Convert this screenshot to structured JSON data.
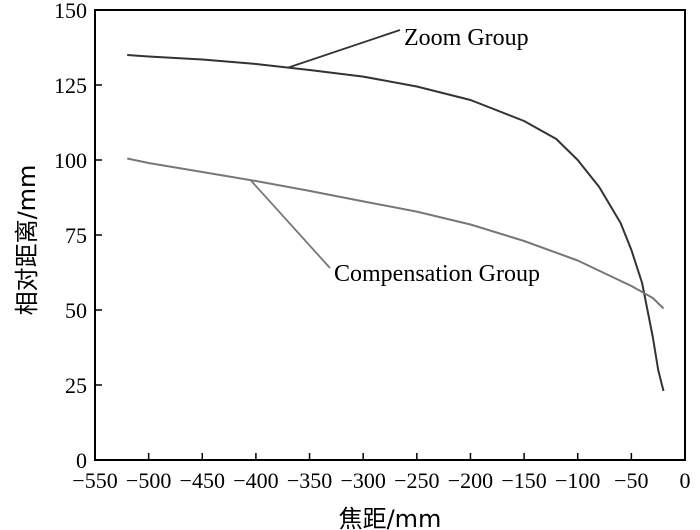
{
  "chart_data": {
    "type": "line",
    "title": "",
    "xlabel": "焦距/mm",
    "ylabel": "相对距离/mm",
    "xlim": [
      -550,
      0
    ],
    "ylim": [
      0,
      150
    ],
    "xticks": [
      -550,
      -500,
      -450,
      -400,
      -350,
      -300,
      -250,
      -200,
      -150,
      -100,
      -50,
      0
    ],
    "xtick_labels": [
      "−550",
      "−500",
      "−450",
      "−400",
      "−350",
      "−300",
      "−250",
      "−200",
      "−150",
      "−100",
      "−50",
      "0"
    ],
    "yticks": [
      0,
      25,
      50,
      75,
      100,
      125,
      150
    ],
    "ytick_labels": [
      "0",
      "25",
      "50",
      "75",
      "100",
      "125",
      "150"
    ],
    "grid": false,
    "series": [
      {
        "name": "Zoom Group",
        "color": "#333333",
        "x": [
          -520,
          -500,
          -450,
          -400,
          -350,
          -300,
          -250,
          -200,
          -150,
          -120,
          -100,
          -80,
          -60,
          -50,
          -40,
          -30,
          -25,
          -20
        ],
        "y": [
          135,
          134.5,
          133.5,
          132,
          130,
          127.8,
          124.5,
          120,
          113,
          107,
          100,
          91,
          79,
          70,
          59,
          41,
          30,
          23
        ]
      },
      {
        "name": "Compensation Group",
        "color": "#777777",
        "x": [
          -520,
          -500,
          -450,
          -400,
          -350,
          -300,
          -250,
          -200,
          -150,
          -100,
          -50,
          -30,
          -20
        ],
        "y": [
          100.5,
          99,
          96,
          93,
          89.7,
          86.2,
          82.8,
          78.5,
          73,
          66.5,
          58,
          54,
          50.5
        ]
      }
    ],
    "annotations": [
      {
        "text": "Zoom Group",
        "series": 0
      },
      {
        "text": "Compensation Group",
        "series": 1
      }
    ]
  }
}
